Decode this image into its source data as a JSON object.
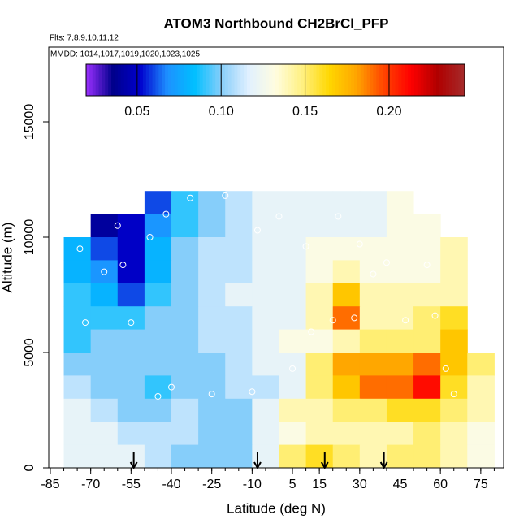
{
  "chart_data": {
    "type": "heatmap",
    "title": "ATOM3 Northbound CH2BrCl_PFP",
    "subtitle": "Flts: 7,8,9,10,11,12",
    "annotation": "MMDD: 1014,1017,1019,1020,1023,1025",
    "x_label": "Latitude (deg N)",
    "y_label": "Altitude (m)",
    "xlim": [
      -85.6,
      83.5
    ],
    "ylim": [
      0,
      18240
    ],
    "xticks": [
      -85,
      -70,
      -55,
      -40,
      -25,
      -10,
      5,
      15,
      30,
      45,
      60,
      75
    ],
    "xminorticks": [
      -85,
      -80,
      -75,
      -70,
      -65,
      -60,
      -55,
      -50,
      -45,
      -40,
      -35,
      -30,
      -25,
      -20,
      -15,
      -10,
      -5,
      0,
      5,
      10,
      15,
      20,
      25,
      30,
      35,
      40,
      45,
      50,
      55,
      60,
      65,
      70,
      75,
      80
    ],
    "yticks": [
      0,
      5000,
      10000,
      15000
    ],
    "x": [
      -75,
      -65,
      -55,
      -45,
      -35,
      -25,
      -15,
      -5,
      5,
      15,
      25,
      35,
      45,
      55,
      65,
      75
    ],
    "y": [
      11500,
      10500,
      9500,
      8500,
      7500,
      6500,
      5500,
      4500,
      3500,
      2500,
      1500,
      500
    ],
    "z": [
      [
        null,
        null,
        null,
        0.06,
        0.09,
        0.1,
        0.11,
        0.12,
        0.12,
        0.12,
        0.12,
        0.12,
        0.13,
        null,
        null,
        null
      ],
      [
        null,
        0.04,
        0.05,
        0.07,
        0.09,
        0.1,
        0.11,
        0.12,
        0.12,
        0.12,
        0.12,
        0.12,
        0.13,
        0.13,
        null,
        null
      ],
      [
        0.08,
        0.06,
        0.05,
        0.08,
        0.1,
        0.11,
        0.11,
        0.12,
        0.12,
        0.13,
        0.13,
        0.13,
        0.13,
        0.13,
        0.14,
        null
      ],
      [
        0.08,
        0.07,
        0.05,
        0.08,
        0.1,
        0.11,
        0.11,
        0.12,
        0.12,
        0.13,
        0.14,
        0.13,
        0.13,
        0.13,
        0.14,
        null
      ],
      [
        0.09,
        0.08,
        0.06,
        0.09,
        0.1,
        0.11,
        0.12,
        0.12,
        0.12,
        0.14,
        0.17,
        0.14,
        0.14,
        0.14,
        0.14,
        null
      ],
      [
        0.09,
        0.09,
        0.09,
        0.1,
        0.1,
        0.11,
        0.11,
        0.12,
        0.12,
        0.14,
        0.19,
        0.14,
        0.14,
        0.15,
        0.16,
        null
      ],
      [
        0.09,
        0.1,
        0.1,
        0.1,
        0.1,
        0.11,
        0.11,
        0.12,
        0.13,
        0.13,
        0.14,
        0.15,
        0.15,
        0.15,
        0.17,
        null
      ],
      [
        0.1,
        0.1,
        0.1,
        0.1,
        0.1,
        0.1,
        0.11,
        0.12,
        0.12,
        0.15,
        0.18,
        0.18,
        0.18,
        0.19,
        0.17,
        0.15
      ],
      [
        0.11,
        0.1,
        0.1,
        0.09,
        0.1,
        0.1,
        0.11,
        0.11,
        0.12,
        0.15,
        0.17,
        0.19,
        0.19,
        0.21,
        0.16,
        0.14
      ],
      [
        0.12,
        0.11,
        0.1,
        0.1,
        0.11,
        0.1,
        0.1,
        0.12,
        0.14,
        0.14,
        0.15,
        0.15,
        0.16,
        0.16,
        0.15,
        0.14
      ],
      [
        0.12,
        0.12,
        0.11,
        0.11,
        0.11,
        0.1,
        0.1,
        0.12,
        0.13,
        0.14,
        0.14,
        0.14,
        0.14,
        0.15,
        0.14,
        0.13
      ],
      [
        0.12,
        0.12,
        0.12,
        0.11,
        0.1,
        0.1,
        0.1,
        0.12,
        0.15,
        0.16,
        0.15,
        0.14,
        0.15,
        0.15,
        0.14,
        0.13
      ]
    ],
    "points": {
      "x": [
        -74,
        -72,
        -65,
        -58,
        -42,
        -48,
        -55,
        -33,
        -20,
        -8,
        0,
        10,
        12,
        22,
        28,
        35,
        47,
        55,
        62,
        65,
        -40,
        -25,
        -10,
        5,
        20,
        40,
        58,
        -60,
        -45,
        30
      ],
      "y": [
        9500,
        6300,
        8500,
        8800,
        11000,
        10000,
        6300,
        11700,
        11800,
        10300,
        10900,
        9600,
        5900,
        10900,
        6500,
        8400,
        6400,
        8800,
        4300,
        3200,
        3500,
        3200,
        3300,
        4300,
        6400,
        8900,
        6600,
        10500,
        3100,
        9700
      ]
    },
    "arrows_x": [
      -54,
      -8,
      17,
      39
    ],
    "clim": [
      0.0196,
      0.245
    ],
    "cticks": [
      {
        "value": 0.05,
        "label": "0.05"
      },
      {
        "value": 0.1,
        "label": "0.10"
      },
      {
        "value": 0.15,
        "label": "0.15"
      },
      {
        "value": 0.2,
        "label": "0.20"
      }
    ],
    "colorscale": [
      "#9b30ff",
      "#00008b",
      "#0000cd",
      "#1e90ff",
      "#00bfff",
      "#87cefa",
      "#e0f0ff",
      "#fffde0",
      "#fff080",
      "#ffd700",
      "#ffa500",
      "#ff4500",
      "#ff0000",
      "#b00000",
      "#a52a2a"
    ]
  }
}
